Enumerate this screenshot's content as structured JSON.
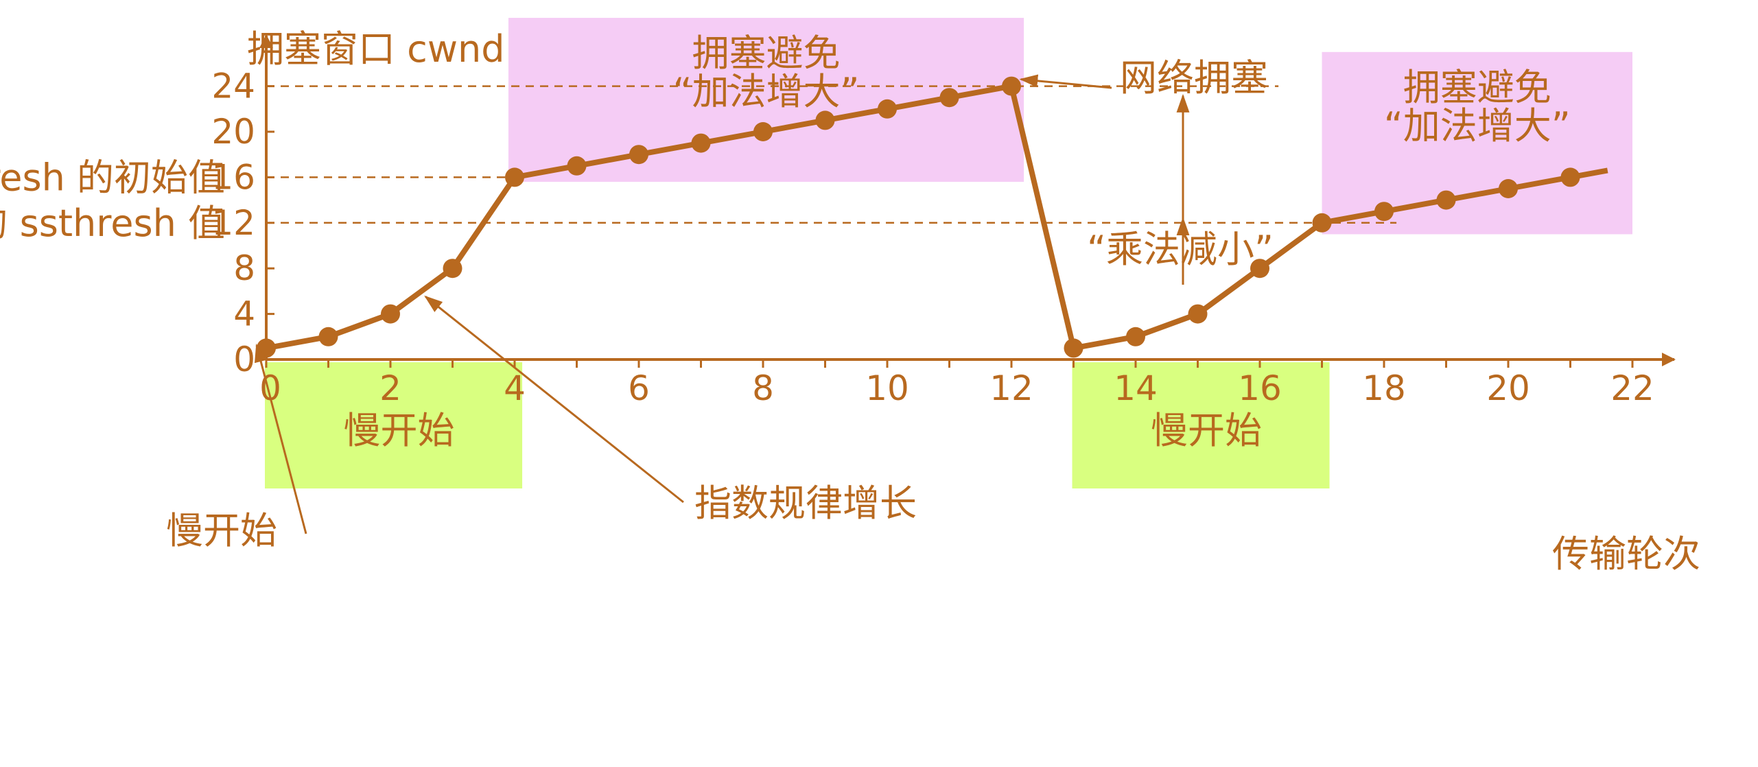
{
  "chart_data": {
    "type": "line",
    "title": "",
    "ylabel": "拥塞窗口 cwnd",
    "xlabel": "传输轮次",
    "xlim": [
      0,
      23
    ],
    "ylim": [
      0,
      26
    ],
    "x_ticks": [
      0,
      2,
      4,
      6,
      8,
      10,
      12,
      14,
      16,
      18,
      20,
      22
    ],
    "y_ticks": [
      0,
      4,
      8,
      12,
      16,
      20,
      24
    ],
    "series": [
      {
        "points": [
          [
            0,
            1
          ],
          [
            1,
            2
          ],
          [
            2,
            4
          ],
          [
            3,
            8
          ],
          [
            4,
            16
          ],
          [
            5,
            17
          ],
          [
            6,
            18
          ],
          [
            7,
            19
          ],
          [
            8,
            20
          ],
          [
            9,
            21
          ],
          [
            10,
            22
          ],
          [
            11,
            23
          ],
          [
            12,
            24
          ],
          [
            13,
            1
          ],
          [
            14,
            2
          ],
          [
            15,
            4
          ],
          [
            16,
            8
          ],
          [
            17,
            12
          ],
          [
            18,
            13
          ],
          [
            19,
            14
          ],
          [
            20,
            15
          ],
          [
            21,
            16
          ]
        ],
        "tail_to_x": 21.6
      }
    ],
    "thresholds": [
      {
        "y": 24,
        "x_end": 16.3
      },
      {
        "y": 16,
        "x_end": 4
      },
      {
        "y": 12,
        "x_end": 18.2
      }
    ],
    "y_annotations": [
      {
        "text": "ssthresh 的初始值",
        "y": 16
      },
      {
        "text": "新的 ssthresh 值",
        "y": 12
      }
    ],
    "regions": [
      {
        "x0": 3.9,
        "x1": 12.2,
        "y0": 15.6,
        "y1": 30,
        "color": "#F5CCF5",
        "lines": [
          "拥塞避免",
          "“加法增大”"
        ]
      },
      {
        "x0": 17.0,
        "x1": 22.0,
        "y0": 11.0,
        "y1": 27,
        "color": "#F5CCF5",
        "lines": [
          "拥塞避免",
          "“加法增大”"
        ]
      }
    ],
    "bottom_boxes": [
      {
        "x0": 0,
        "x1": 4.1,
        "color": "#D9FF80",
        "label": "慢开始"
      },
      {
        "x0": 13.0,
        "x1": 17.1,
        "color": "#D9FF80",
        "label": "慢开始"
      }
    ],
    "annotations": [
      {
        "text": "网络拥塞",
        "target": [
          12,
          24
        ]
      },
      {
        "text": "“乘法减小”"
      },
      {
        "text": "指数规律增长",
        "target": [
          2.5,
          6
        ]
      },
      {
        "text": "慢开始",
        "target": [
          0,
          1
        ]
      }
    ],
    "colors": {
      "line": "#B8691F",
      "text": "#B8691F",
      "region_pink": "#F5CCF5",
      "region_green": "#D9FF80"
    }
  }
}
